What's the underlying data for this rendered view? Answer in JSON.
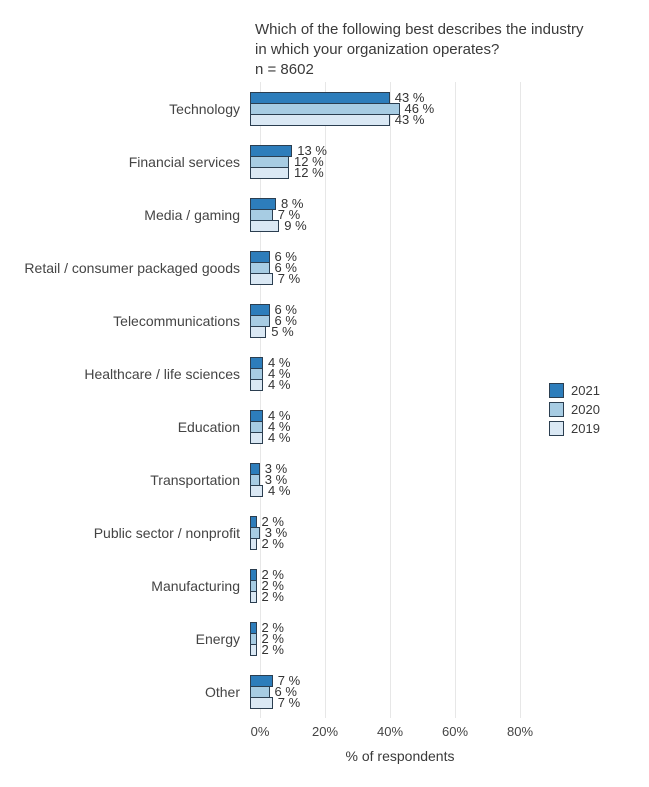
{
  "title": {
    "line1": "Which of the following best describes the industry",
    "line2": "in which your organization operates?",
    "sample": "n = 8602"
  },
  "chart_data": {
    "type": "bar",
    "orientation": "horizontal",
    "title": "Which of the following best describes the industry in which your organization operates?",
    "subtitle": "n = 8602",
    "categories": [
      "Technology",
      "Financial services",
      "Media / gaming",
      "Retail / consumer packaged goods",
      "Telecommunications",
      "Healthcare / life sciences",
      "Education",
      "Transportation",
      "Public sector / nonprofit",
      "Manufacturing",
      "Energy",
      "Other"
    ],
    "series": [
      {
        "name": "2021",
        "color": "#2d7dbb",
        "values": [
          43,
          13,
          8,
          6,
          6,
          4,
          4,
          3,
          2,
          2,
          2,
          7
        ]
      },
      {
        "name": "2020",
        "color": "#a7cce3",
        "values": [
          46,
          12,
          7,
          6,
          6,
          4,
          4,
          3,
          3,
          2,
          2,
          6
        ]
      },
      {
        "name": "2019",
        "color": "#dae8f4",
        "values": [
          43,
          12,
          9,
          7,
          5,
          4,
          4,
          4,
          2,
          2,
          2,
          7
        ]
      }
    ],
    "value_suffix": " %",
    "xlabel": "% of respondents",
    "x_ticks": [
      "0%",
      "20%",
      "40%",
      "60%",
      "80%"
    ],
    "x_tick_values": [
      0,
      20,
      40,
      60,
      80
    ],
    "xlim": [
      0,
      89
    ],
    "grid": true,
    "legend_position": "right",
    "bar_border_color": "#2b3e50"
  }
}
